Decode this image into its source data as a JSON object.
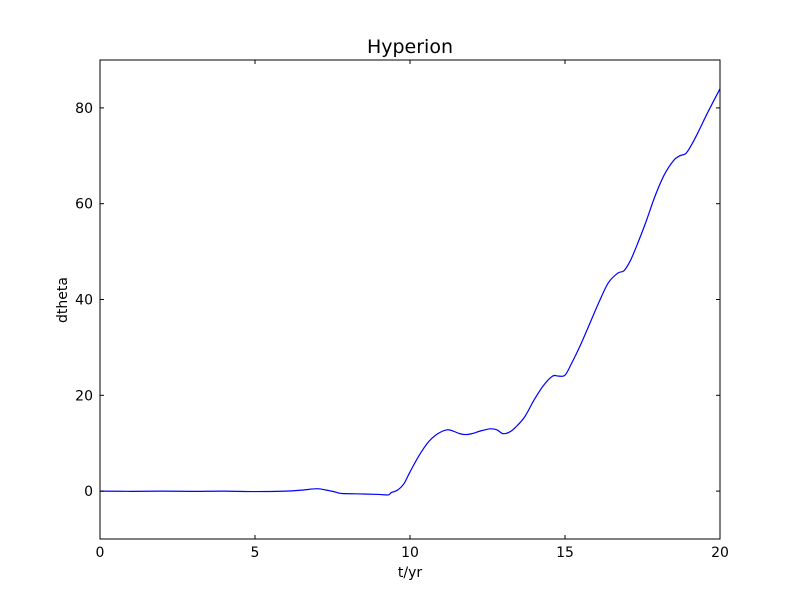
{
  "chart_data": {
    "type": "line",
    "title": "Hyperion",
    "xlabel": "t/yr",
    "ylabel": "dtheta",
    "xlim": [
      0,
      20
    ],
    "ylim": [
      -10,
      90
    ],
    "xticks": [
      0,
      5,
      10,
      15,
      20
    ],
    "yticks": [
      0,
      20,
      40,
      60,
      80
    ],
    "grid": false,
    "series": [
      {
        "color": "#0000ff",
        "x": [
          0,
          1,
          2,
          3,
          4,
          5,
          6,
          6.5,
          7,
          7.3,
          7.6,
          7.8,
          8.5,
          9,
          9.3,
          9.4,
          9.6,
          9.8,
          10,
          10.3,
          10.6,
          10.9,
          11.2,
          11.4,
          11.6,
          11.8,
          12,
          12.3,
          12.6,
          12.8,
          13,
          13.2,
          13.4,
          13.7,
          14,
          14.3,
          14.6,
          14.8,
          15,
          15.2,
          15.5,
          15.8,
          16.1,
          16.4,
          16.7,
          16.9,
          17.1,
          17.3,
          17.6,
          17.9,
          18.2,
          18.5,
          18.7,
          18.9,
          19.1,
          19.3,
          19.6,
          20
        ],
        "y": [
          0,
          -0.05,
          0,
          -0.05,
          0,
          -0.1,
          0,
          0.2,
          0.5,
          0.2,
          -0.2,
          -0.5,
          -0.6,
          -0.7,
          -0.8,
          -0.3,
          0.2,
          1.5,
          4.0,
          7.5,
          10.3,
          12.0,
          12.8,
          12.5,
          12.0,
          11.8,
          12.0,
          12.6,
          13.0,
          12.8,
          12.0,
          12.3,
          13.3,
          15.5,
          19.0,
          22.0,
          24.0,
          24.0,
          24.2,
          26.5,
          30.5,
          35.0,
          39.5,
          43.5,
          45.5,
          46.0,
          48.0,
          51.0,
          56.0,
          61.5,
          66.0,
          69.0,
          70.0,
          70.5,
          72.5,
          75.0,
          79.0,
          84.0
        ]
      }
    ]
  }
}
